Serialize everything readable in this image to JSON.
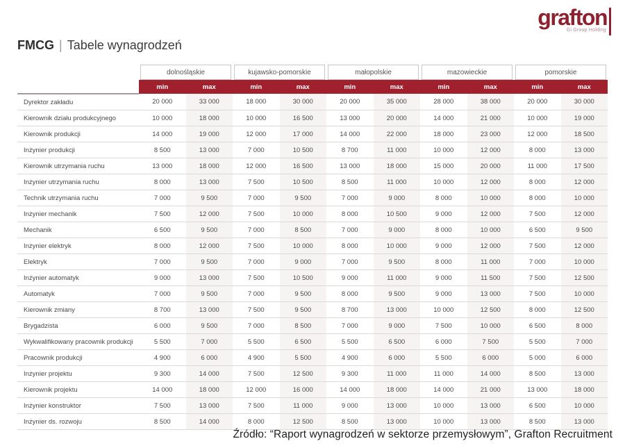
{
  "page": {
    "title_left": "FMCG",
    "title_sep": "|",
    "title_right": "Tabele wynagrodzeń",
    "source": "Źródło: “Raport wynagrodzeń w  sektorze przemysłowym”, Grafton Recruitment"
  },
  "logo": {
    "text": "grafton",
    "subtext": "Gi Group Holding"
  },
  "colors": {
    "header_red": "#A0202E",
    "logo_red": "#8E2130"
  },
  "table": {
    "regions": [
      "dolnośląskie",
      "kujawsko-pomorskie",
      "małopolskie",
      "mazowieckie",
      "pomorskie"
    ],
    "subheaders": [
      "min",
      "max"
    ],
    "rows": [
      {
        "job": "Dyrektor zakładu",
        "values": [
          "20 000",
          "33 000",
          "18 000",
          "30 000",
          "20 000",
          "35 000",
          "28 000",
          "38 000",
          "20 000",
          "30 000"
        ]
      },
      {
        "job": "Kierownik działu produkcyjnego",
        "values": [
          "10 000",
          "18 000",
          "10 000",
          "16 500",
          "13 000",
          "20 000",
          "14 000",
          "21 000",
          "10 000",
          "19 000"
        ]
      },
      {
        "job": "Kierownik produkcji",
        "values": [
          "14 000",
          "19 000",
          "12 000",
          "17 000",
          "14 000",
          "22 000",
          "18 000",
          "23 000",
          "12 000",
          "18 500"
        ]
      },
      {
        "job": "Inżynier produkcji",
        "values": [
          "8 500",
          "13 000",
          "7 000",
          "10 500",
          "8 700",
          "11 000",
          "10 000",
          "12 000",
          "8 000",
          "13 000"
        ]
      },
      {
        "job": "Kierownik utrzymania ruchu",
        "values": [
          "13 000",
          "18 000",
          "12 000",
          "16 500",
          "13 000",
          "18 000",
          "15 000",
          "20 000",
          "11 000",
          "17 500"
        ]
      },
      {
        "job": "Inżynier utrzymania ruchu",
        "values": [
          "8 000",
          "13 000",
          "7 500",
          "10 500",
          "8 500",
          "11 000",
          "10 000",
          "12 000",
          "8 000",
          "12 000"
        ]
      },
      {
        "job": "Technik utrzymania ruchu",
        "values": [
          "7 000",
          "9 500",
          "7 000",
          "9 500",
          "7 000",
          "9 000",
          "8 000",
          "10 000",
          "8 000",
          "10 000"
        ]
      },
      {
        "job": "Inżynier mechanik",
        "values": [
          "7 500",
          "12 000",
          "7 500",
          "10 000",
          "8 000",
          "10 500",
          "9 000",
          "12 000",
          "7 500",
          "12 000"
        ]
      },
      {
        "job": "Mechanik",
        "values": [
          "6 500",
          "9 500",
          "7 000",
          "8 500",
          "7 000",
          "9 000",
          "8 000",
          "10 000",
          "6 500",
          "9 500"
        ]
      },
      {
        "job": "Inżynier elektryk",
        "values": [
          "8 000",
          "12 000",
          "7 500",
          "10 000",
          "8 000",
          "10 000",
          "9 000",
          "12 000",
          "7 500",
          "12 000"
        ]
      },
      {
        "job": "Elektryk",
        "values": [
          "7 000",
          "9 500",
          "7 000",
          "9 000",
          "7 000",
          "9 500",
          "8 000",
          "11 000",
          "7 000",
          "10 000"
        ]
      },
      {
        "job": "Inżynier automatyk",
        "values": [
          "9 000",
          "13 000",
          "7 500",
          "10 500",
          "9 000",
          "11 000",
          "9 000",
          "11 500",
          "7 500",
          "12 500"
        ]
      },
      {
        "job": "Automatyk",
        "values": [
          "7 000",
          "9 500",
          "7 000",
          "9 500",
          "8 000",
          "9 500",
          "9 000",
          "13 000",
          "7 500",
          "10 000"
        ]
      },
      {
        "job": "Kierownik zmiany",
        "values": [
          "8 700",
          "13 000",
          "7 500",
          "9 500",
          "8 700",
          "13 000",
          "10 000",
          "12 500",
          "8 000",
          "12 500"
        ]
      },
      {
        "job": "Brygadzista",
        "values": [
          "6 000",
          "9 500",
          "7 000",
          "8 500",
          "7 000",
          "9 000",
          "7 500",
          "10 000",
          "6 500",
          "8 000"
        ]
      },
      {
        "job": "Wykwalifikowany pracownik produkcji",
        "values": [
          "5 500",
          "7 000",
          "5 500",
          "6 500",
          "5 500",
          "6 500",
          "6 000",
          "7 500",
          "5 500",
          "7 000"
        ]
      },
      {
        "job": "Pracownik produkcji",
        "values": [
          "4 900",
          "6 000",
          "4 900",
          "5 500",
          "4 900",
          "6 000",
          "5 500",
          "6 000",
          "5 000",
          "6 000"
        ]
      },
      {
        "job": "Inżynier projektu",
        "values": [
          "9 300",
          "14 000",
          "7 500",
          "12 500",
          "9 300",
          "11 000",
          "11 000",
          "14 000",
          "8 500",
          "13 000"
        ]
      },
      {
        "job": "Kierownik projektu",
        "values": [
          "14 000",
          "18 000",
          "12 000",
          "16 000",
          "14 000",
          "18 000",
          "14 000",
          "21 000",
          "13 000",
          "18 000"
        ]
      },
      {
        "job": "Inżynier konstruktor",
        "values": [
          "7 500",
          "13 000",
          "7 500",
          "11 000",
          "9 000",
          "13 000",
          "10 000",
          "13 000",
          "6 500",
          "10 000"
        ]
      },
      {
        "job": "Inżynier ds. rozwoju",
        "values": [
          "8 500",
          "14 000",
          "8 000",
          "12 500",
          "8 500",
          "13 000",
          "10 000",
          "13 000",
          "8 500",
          "13 000"
        ]
      }
    ]
  }
}
